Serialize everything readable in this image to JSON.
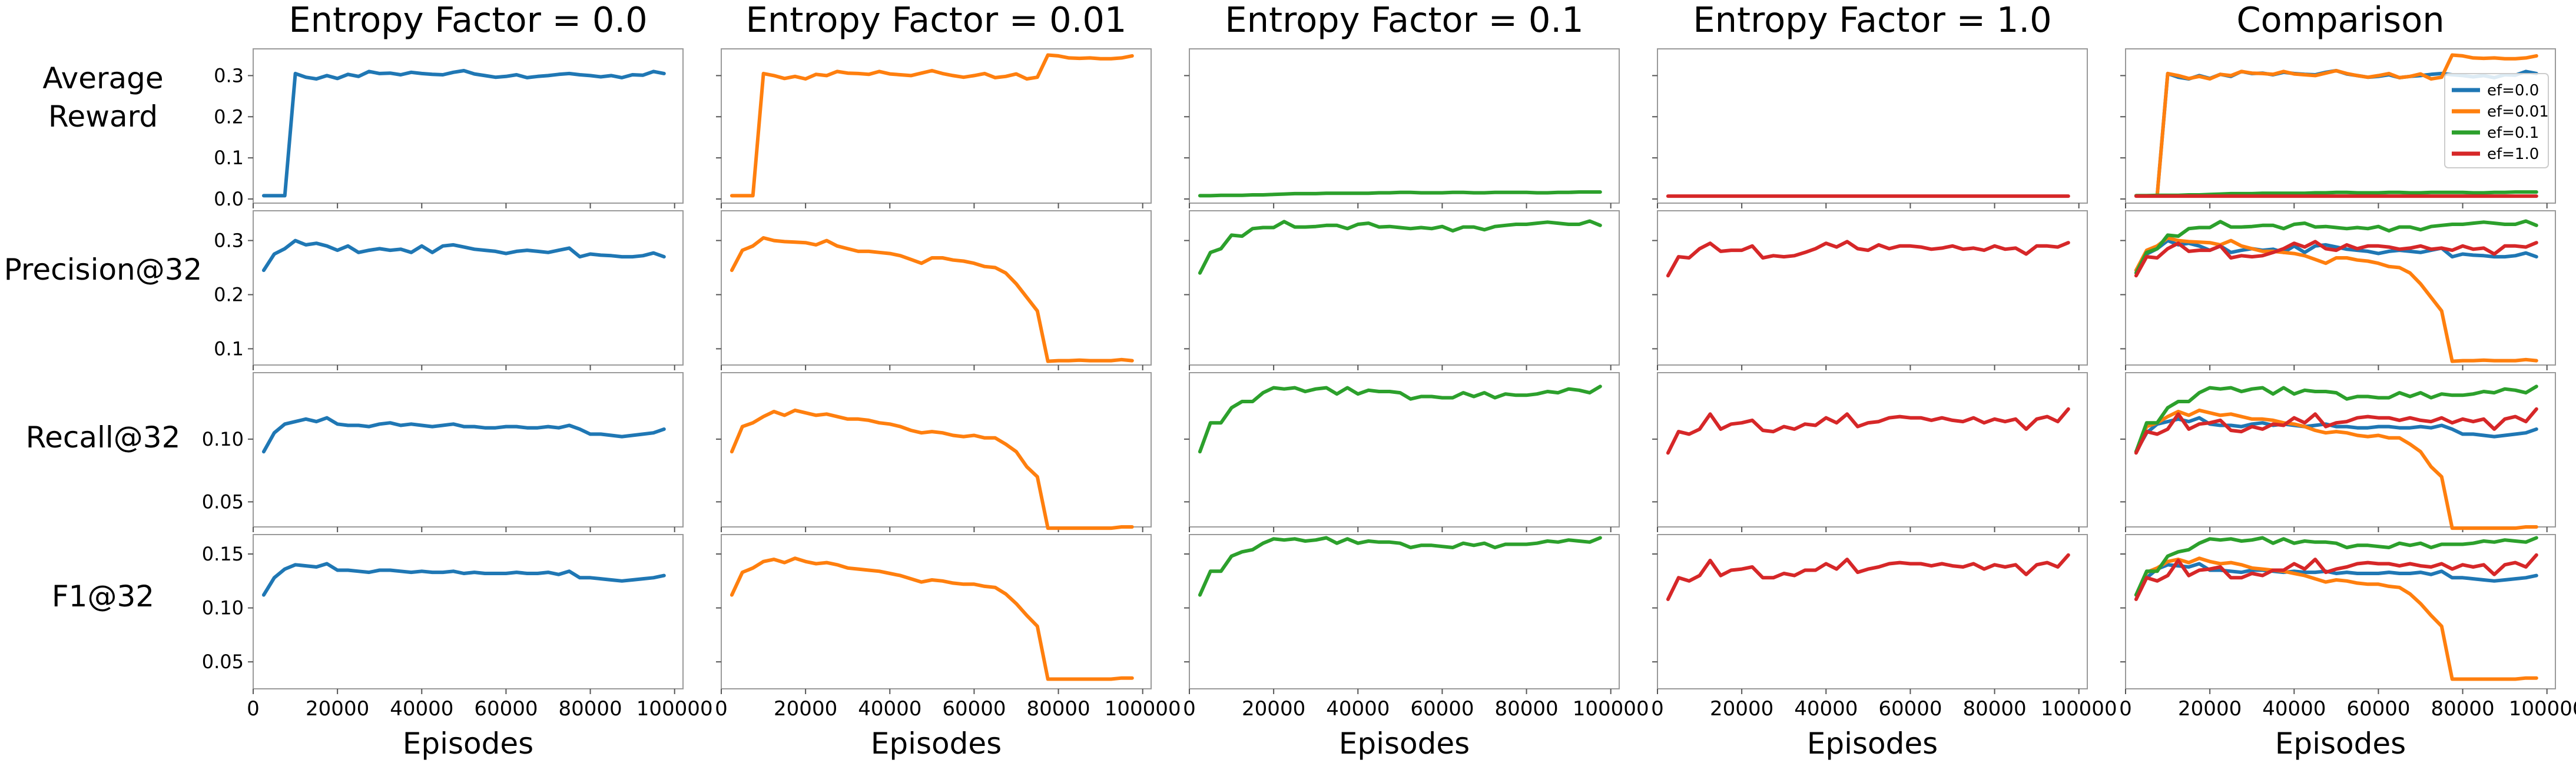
{
  "figure": {
    "column_titles": [
      "Entropy Factor = 0.0",
      "Entropy Factor = 0.01",
      "Entropy Factor = 0.1",
      "Entropy Factor = 1.0",
      "Comparison"
    ],
    "row_labels": [
      [
        "Average",
        "Reward"
      ],
      [
        "Precision@32"
      ],
      [
        "Recall@32"
      ],
      [
        "F1@32"
      ]
    ],
    "xlabel": "Episodes",
    "x_tick_labels": [
      "0",
      "20000",
      "40000",
      "60000",
      "80000",
      "100000"
    ],
    "legend_position": "upper-right of Comparison / Average Reward panel",
    "legend_labels": [
      "ef=0.0",
      "ef=0.01",
      "ef=0.1",
      "ef=1.0"
    ]
  },
  "colors": {
    "ef=0.0": "#1f77b4",
    "ef=0.01": "#ff7f0e",
    "ef=0.1": "#2ca02c",
    "ef=1.0": "#d62728"
  },
  "chart_data": {
    "type": "line",
    "layout": "4 rows x 5 columns small multiples; rows share y-axis, columns share x-axis",
    "x": [
      2500,
      5000,
      7500,
      10000,
      12500,
      15000,
      17500,
      20000,
      22500,
      25000,
      27500,
      30000,
      32500,
      35000,
      37500,
      40000,
      42500,
      45000,
      47500,
      50000,
      52500,
      55000,
      57500,
      60000,
      62500,
      65000,
      67500,
      70000,
      72500,
      75000,
      77500,
      80000,
      82500,
      85000,
      87500,
      90000,
      92500,
      95000,
      97500
    ],
    "xlim": [
      0,
      102000
    ],
    "x_ticks": [
      0,
      20000,
      40000,
      60000,
      80000,
      100000
    ],
    "metrics": [
      {
        "name": "Average Reward",
        "ylim": [
          -0.01,
          0.365
        ],
        "y_ticks": [
          0.0,
          0.1,
          0.2,
          0.3
        ],
        "y_tick_labels": [
          "0.0",
          "0.1",
          "0.2",
          "0.3"
        ],
        "series": [
          {
            "name": "ef=0.0",
            "values": [
              0.008,
              0.008,
              0.008,
              0.305,
              0.296,
              0.292,
              0.3,
              0.293,
              0.303,
              0.298,
              0.31,
              0.305,
              0.306,
              0.302,
              0.308,
              0.305,
              0.303,
              0.302,
              0.308,
              0.312,
              0.304,
              0.3,
              0.296,
              0.298,
              0.302,
              0.295,
              0.298,
              0.3,
              0.303,
              0.305,
              0.302,
              0.3,
              0.297,
              0.3,
              0.295,
              0.302,
              0.301,
              0.31,
              0.305
            ]
          },
          {
            "name": "ef=0.01",
            "values": [
              0.008,
              0.008,
              0.008,
              0.305,
              0.3,
              0.293,
              0.298,
              0.292,
              0.303,
              0.3,
              0.31,
              0.306,
              0.305,
              0.303,
              0.31,
              0.304,
              0.302,
              0.3,
              0.306,
              0.312,
              0.305,
              0.3,
              0.296,
              0.3,
              0.305,
              0.295,
              0.298,
              0.304,
              0.292,
              0.296,
              0.35,
              0.348,
              0.343,
              0.342,
              0.343,
              0.341,
              0.341,
              0.343,
              0.348
            ]
          },
          {
            "name": "ef=0.1",
            "values": [
              0.008,
              0.008,
              0.009,
              0.009,
              0.009,
              0.01,
              0.01,
              0.011,
              0.012,
              0.013,
              0.013,
              0.013,
              0.014,
              0.014,
              0.014,
              0.014,
              0.014,
              0.015,
              0.015,
              0.016,
              0.016,
              0.015,
              0.015,
              0.015,
              0.016,
              0.016,
              0.015,
              0.015,
              0.016,
              0.016,
              0.016,
              0.016,
              0.015,
              0.015,
              0.016,
              0.016,
              0.017,
              0.017,
              0.017
            ]
          },
          {
            "name": "ef=1.0",
            "values": [
              0.007,
              0.007,
              0.007,
              0.007,
              0.007,
              0.007,
              0.007,
              0.007,
              0.007,
              0.007,
              0.007,
              0.007,
              0.007,
              0.007,
              0.007,
              0.007,
              0.007,
              0.007,
              0.007,
              0.007,
              0.007,
              0.007,
              0.007,
              0.007,
              0.007,
              0.007,
              0.007,
              0.007,
              0.007,
              0.007,
              0.007,
              0.007,
              0.007,
              0.007,
              0.007,
              0.007,
              0.007,
              0.007,
              0.007
            ]
          }
        ]
      },
      {
        "name": "Precision@32",
        "ylim": [
          0.07,
          0.355
        ],
        "y_ticks": [
          0.1,
          0.2,
          0.3
        ],
        "y_tick_labels": [
          "0.1",
          "0.2",
          "0.3"
        ],
        "series": [
          {
            "name": "ef=0.0",
            "values": [
              0.245,
              0.275,
              0.285,
              0.3,
              0.292,
              0.295,
              0.29,
              0.282,
              0.29,
              0.278,
              0.282,
              0.285,
              0.282,
              0.284,
              0.278,
              0.29,
              0.278,
              0.29,
              0.292,
              0.288,
              0.284,
              0.282,
              0.28,
              0.276,
              0.28,
              0.282,
              0.28,
              0.278,
              0.282,
              0.286,
              0.27,
              0.275,
              0.273,
              0.272,
              0.27,
              0.27,
              0.272,
              0.277,
              0.27
            ]
          },
          {
            "name": "ef=0.01",
            "values": [
              0.245,
              0.282,
              0.29,
              0.305,
              0.3,
              0.298,
              0.297,
              0.296,
              0.292,
              0.3,
              0.29,
              0.285,
              0.28,
              0.28,
              0.278,
              0.276,
              0.272,
              0.265,
              0.258,
              0.268,
              0.268,
              0.264,
              0.262,
              0.258,
              0.252,
              0.25,
              0.24,
              0.22,
              0.195,
              0.17,
              0.077,
              0.078,
              0.078,
              0.079,
              0.078,
              0.078,
              0.078,
              0.08,
              0.078
            ]
          },
          {
            "name": "ef=0.1",
            "values": [
              0.24,
              0.278,
              0.285,
              0.31,
              0.308,
              0.322,
              0.324,
              0.324,
              0.335,
              0.325,
              0.325,
              0.326,
              0.328,
              0.328,
              0.322,
              0.33,
              0.332,
              0.325,
              0.326,
              0.324,
              0.322,
              0.324,
              0.322,
              0.326,
              0.318,
              0.325,
              0.325,
              0.32,
              0.326,
              0.328,
              0.33,
              0.33,
              0.332,
              0.334,
              0.332,
              0.33,
              0.33,
              0.336,
              0.328
            ]
          },
          {
            "name": "ef=1.0",
            "values": [
              0.235,
              0.27,
              0.268,
              0.285,
              0.295,
              0.28,
              0.282,
              0.282,
              0.29,
              0.268,
              0.272,
              0.27,
              0.272,
              0.278,
              0.285,
              0.295,
              0.288,
              0.298,
              0.285,
              0.282,
              0.292,
              0.285,
              0.29,
              0.29,
              0.288,
              0.284,
              0.286,
              0.29,
              0.284,
              0.286,
              0.282,
              0.29,
              0.284,
              0.286,
              0.275,
              0.29,
              0.29,
              0.288,
              0.296
            ]
          }
        ]
      },
      {
        "name": "Recall@32",
        "ylim": [
          0.03,
          0.153
        ],
        "y_ticks": [
          0.05,
          0.1
        ],
        "y_tick_labels": [
          "0.05",
          "0.10"
        ],
        "series": [
          {
            "name": "ef=0.0",
            "values": [
              0.09,
              0.105,
              0.112,
              0.114,
              0.116,
              0.114,
              0.117,
              0.112,
              0.111,
              0.111,
              0.11,
              0.112,
              0.113,
              0.111,
              0.112,
              0.111,
              0.11,
              0.111,
              0.112,
              0.11,
              0.11,
              0.109,
              0.109,
              0.11,
              0.11,
              0.109,
              0.109,
              0.11,
              0.109,
              0.111,
              0.108,
              0.104,
              0.104,
              0.103,
              0.102,
              0.103,
              0.104,
              0.105,
              0.108
            ]
          },
          {
            "name": "ef=0.01",
            "values": [
              0.09,
              0.11,
              0.113,
              0.118,
              0.122,
              0.119,
              0.123,
              0.121,
              0.119,
              0.12,
              0.118,
              0.116,
              0.116,
              0.115,
              0.113,
              0.112,
              0.11,
              0.107,
              0.105,
              0.106,
              0.105,
              0.103,
              0.102,
              0.103,
              0.101,
              0.101,
              0.096,
              0.09,
              0.078,
              0.07,
              0.029,
              0.029,
              0.029,
              0.029,
              0.029,
              0.029,
              0.029,
              0.03,
              0.03
            ]
          },
          {
            "name": "ef=0.1",
            "values": [
              0.09,
              0.113,
              0.113,
              0.125,
              0.13,
              0.13,
              0.137,
              0.141,
              0.14,
              0.141,
              0.138,
              0.14,
              0.141,
              0.136,
              0.141,
              0.136,
              0.139,
              0.138,
              0.138,
              0.137,
              0.132,
              0.134,
              0.134,
              0.133,
              0.133,
              0.137,
              0.134,
              0.137,
              0.133,
              0.136,
              0.135,
              0.135,
              0.136,
              0.138,
              0.137,
              0.14,
              0.139,
              0.137,
              0.142
            ]
          },
          {
            "name": "ef=1.0",
            "values": [
              0.089,
              0.106,
              0.104,
              0.108,
              0.12,
              0.108,
              0.112,
              0.113,
              0.115,
              0.107,
              0.106,
              0.11,
              0.108,
              0.112,
              0.111,
              0.117,
              0.113,
              0.12,
              0.11,
              0.113,
              0.114,
              0.117,
              0.118,
              0.117,
              0.117,
              0.115,
              0.117,
              0.115,
              0.114,
              0.117,
              0.113,
              0.116,
              0.114,
              0.116,
              0.108,
              0.116,
              0.118,
              0.114,
              0.124
            ]
          }
        ]
      },
      {
        "name": "F1@32",
        "ylim": [
          0.025,
          0.168
        ],
        "y_ticks": [
          0.05,
          0.1,
          0.15
        ],
        "y_tick_labels": [
          "0.05",
          "0.10",
          "0.15"
        ],
        "series": [
          {
            "name": "ef=0.0",
            "values": [
              0.112,
              0.128,
              0.136,
              0.14,
              0.139,
              0.138,
              0.141,
              0.135,
              0.135,
              0.134,
              0.133,
              0.135,
              0.135,
              0.134,
              0.133,
              0.134,
              0.133,
              0.133,
              0.134,
              0.132,
              0.133,
              0.132,
              0.132,
              0.132,
              0.133,
              0.132,
              0.132,
              0.133,
              0.131,
              0.134,
              0.128,
              0.128,
              0.127,
              0.126,
              0.125,
              0.126,
              0.127,
              0.128,
              0.13
            ]
          },
          {
            "name": "ef=0.01",
            "values": [
              0.112,
              0.133,
              0.137,
              0.143,
              0.145,
              0.142,
              0.146,
              0.143,
              0.141,
              0.142,
              0.14,
              0.137,
              0.136,
              0.135,
              0.134,
              0.132,
              0.13,
              0.127,
              0.124,
              0.126,
              0.125,
              0.123,
              0.122,
              0.122,
              0.12,
              0.119,
              0.113,
              0.104,
              0.093,
              0.083,
              0.034,
              0.034,
              0.034,
              0.034,
              0.034,
              0.034,
              0.034,
              0.035,
              0.035
            ]
          },
          {
            "name": "ef=0.1",
            "values": [
              0.112,
              0.134,
              0.134,
              0.148,
              0.152,
              0.154,
              0.16,
              0.164,
              0.163,
              0.164,
              0.162,
              0.163,
              0.165,
              0.16,
              0.164,
              0.16,
              0.162,
              0.161,
              0.161,
              0.16,
              0.156,
              0.158,
              0.158,
              0.157,
              0.156,
              0.16,
              0.158,
              0.16,
              0.156,
              0.159,
              0.159,
              0.159,
              0.16,
              0.162,
              0.161,
              0.163,
              0.162,
              0.161,
              0.165
            ]
          },
          {
            "name": "ef=1.0",
            "values": [
              0.108,
              0.128,
              0.125,
              0.13,
              0.144,
              0.13,
              0.135,
              0.136,
              0.138,
              0.128,
              0.128,
              0.132,
              0.13,
              0.135,
              0.135,
              0.141,
              0.136,
              0.145,
              0.133,
              0.136,
              0.138,
              0.141,
              0.142,
              0.141,
              0.141,
              0.139,
              0.141,
              0.139,
              0.138,
              0.141,
              0.136,
              0.14,
              0.138,
              0.14,
              0.131,
              0.14,
              0.142,
              0.138,
              0.149
            ]
          }
        ]
      }
    ]
  }
}
